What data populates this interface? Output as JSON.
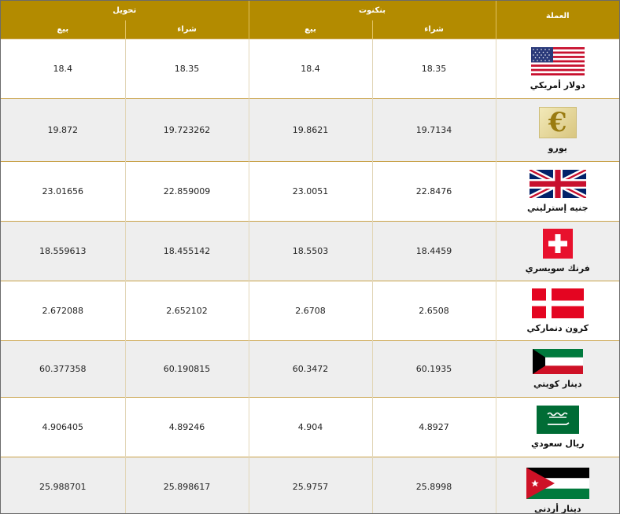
{
  "header": {
    "currency": "العملة",
    "group_banknotes": "بنكنوت",
    "group_transfer": "تحويل",
    "buy": "شراء",
    "sell": "بيع"
  },
  "rows": [
    {
      "name": "دولار أمريكي",
      "flag_icon": "usa-flag-icon",
      "bank_buy": "18.35",
      "bank_sell": "18.4",
      "transfer_buy": "18.35",
      "transfer_sell": "18.4"
    },
    {
      "name": "يورو",
      "flag_icon": "euro-icon",
      "bank_buy": "19.7134",
      "bank_sell": "19.8621",
      "transfer_buy": "19.723262",
      "transfer_sell": "19.872"
    },
    {
      "name": "جنيه إسترليني",
      "flag_icon": "uk-flag-icon",
      "bank_buy": "22.8476",
      "bank_sell": "23.0051",
      "transfer_buy": "22.859009",
      "transfer_sell": "23.01656"
    },
    {
      "name": "فرنك سويسري",
      "flag_icon": "switzerland-flag-icon",
      "bank_buy": "18.4459",
      "bank_sell": "18.5503",
      "transfer_buy": "18.455142",
      "transfer_sell": "18.559613"
    },
    {
      "name": "كرون دنماركي",
      "flag_icon": "denmark-flag-icon",
      "bank_buy": "2.6508",
      "bank_sell": "2.6708",
      "transfer_buy": "2.652102",
      "transfer_sell": "2.672088"
    },
    {
      "name": "دينار كويتي",
      "flag_icon": "kuwait-flag-icon",
      "bank_buy": "60.1935",
      "bank_sell": "60.3472",
      "transfer_buy": "60.190815",
      "transfer_sell": "60.377358"
    },
    {
      "name": "ريال سعودي",
      "flag_icon": "saudi-flag-icon",
      "bank_buy": "4.8927",
      "bank_sell": "4.904",
      "transfer_buy": "4.89246",
      "transfer_sell": "4.906405"
    },
    {
      "name": "دينار أردني",
      "flag_icon": "jordan-flag-icon",
      "bank_buy": "25.8998",
      "bank_sell": "25.9757",
      "transfer_buy": "25.898617",
      "transfer_sell": "25.988701"
    }
  ],
  "colors": {
    "header_bg": "#b38b00",
    "row_alt": "#eeeeee",
    "row_border": "#c9a24a"
  }
}
